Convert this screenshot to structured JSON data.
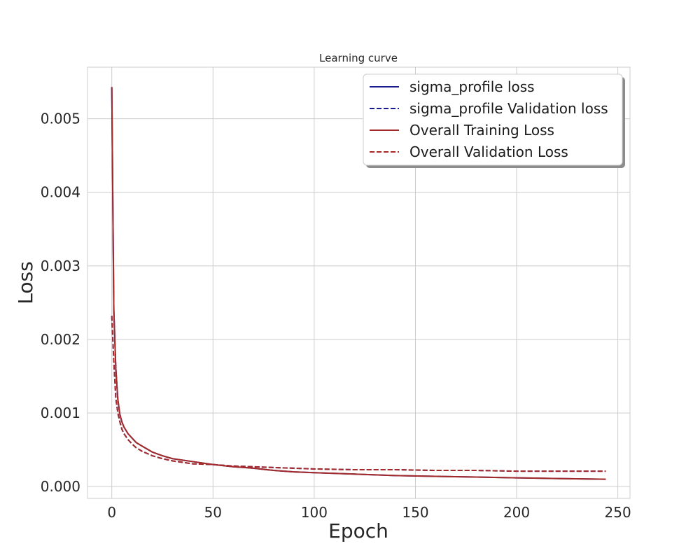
{
  "chart_data": {
    "type": "line",
    "title": "Learning curve",
    "xlabel": "Epoch",
    "ylabel": "Loss",
    "xlim": [
      -12,
      256
    ],
    "ylim": [
      -0.00016,
      0.0057
    ],
    "xticks": [
      0,
      50,
      100,
      150,
      200,
      250
    ],
    "yticks": [
      0.0,
      0.001,
      0.002,
      0.003,
      0.004,
      0.005
    ],
    "ytick_labels": [
      "0.000",
      "0.001",
      "0.002",
      "0.003",
      "0.004",
      "0.005"
    ],
    "grid": true,
    "legend": "top-right",
    "colors": {
      "navy": "#1a1a8c",
      "red": "#a52a2a"
    },
    "series": [
      {
        "name": "sigma_profile loss",
        "color": "#1a1a8c",
        "dash": "solid",
        "x": [
          0,
          1,
          2,
          3,
          4,
          5,
          6,
          8,
          10,
          12,
          15,
          20,
          25,
          30,
          40,
          50,
          60,
          70,
          80,
          90,
          100,
          120,
          140,
          160,
          180,
          200,
          220,
          244
        ],
        "y": [
          0.00543,
          0.0024,
          0.0016,
          0.00118,
          0.00098,
          0.00088,
          0.00081,
          0.00072,
          0.00066,
          0.0006,
          0.00055,
          0.00047,
          0.00042,
          0.00038,
          0.00034,
          0.0003,
          0.00027,
          0.00025,
          0.00022,
          0.0002,
          0.00019,
          0.00017,
          0.00015,
          0.00014,
          0.00013,
          0.00012,
          0.00011,
          0.0001
        ]
      },
      {
        "name": "sigma_profile Validation loss",
        "color": "#1a1a8c",
        "dash": "dashed",
        "x": [
          0,
          1,
          2,
          3,
          4,
          5,
          6,
          8,
          10,
          12,
          15,
          20,
          25,
          30,
          40,
          50,
          60,
          70,
          80,
          90,
          100,
          120,
          140,
          160,
          180,
          200,
          220,
          244
        ],
        "y": [
          0.00232,
          0.0017,
          0.0012,
          0.001,
          0.00088,
          0.00078,
          0.00072,
          0.00064,
          0.00058,
          0.00053,
          0.00048,
          0.00042,
          0.00038,
          0.00035,
          0.00031,
          0.0003,
          0.00028,
          0.00027,
          0.00026,
          0.00025,
          0.00024,
          0.00023,
          0.00023,
          0.00022,
          0.00022,
          0.00021,
          0.00021,
          0.00021
        ]
      },
      {
        "name": "Overall Training Loss",
        "color": "#a52a2a",
        "dash": "solid",
        "x": [
          0,
          1,
          2,
          3,
          4,
          5,
          6,
          8,
          10,
          12,
          15,
          20,
          25,
          30,
          40,
          50,
          60,
          70,
          80,
          90,
          100,
          120,
          140,
          160,
          180,
          200,
          220,
          244
        ],
        "y": [
          0.00543,
          0.0024,
          0.0016,
          0.00118,
          0.00098,
          0.00088,
          0.00081,
          0.00072,
          0.00066,
          0.0006,
          0.00055,
          0.00047,
          0.00042,
          0.00038,
          0.00034,
          0.0003,
          0.00027,
          0.00025,
          0.00022,
          0.0002,
          0.00019,
          0.00017,
          0.00015,
          0.00014,
          0.00013,
          0.00012,
          0.00011,
          0.0001
        ]
      },
      {
        "name": "Overall Validation Loss",
        "color": "#a52a2a",
        "dash": "dashed",
        "x": [
          0,
          1,
          2,
          3,
          4,
          5,
          6,
          8,
          10,
          12,
          15,
          20,
          25,
          30,
          40,
          50,
          60,
          70,
          80,
          90,
          100,
          120,
          140,
          160,
          180,
          200,
          220,
          244
        ],
        "y": [
          0.00232,
          0.0017,
          0.0012,
          0.001,
          0.00088,
          0.00078,
          0.00072,
          0.00064,
          0.00058,
          0.00053,
          0.00048,
          0.00042,
          0.00038,
          0.00035,
          0.00031,
          0.0003,
          0.00028,
          0.00027,
          0.00026,
          0.00025,
          0.00024,
          0.00023,
          0.00023,
          0.00022,
          0.00022,
          0.00021,
          0.00021,
          0.00021
        ]
      }
    ]
  }
}
